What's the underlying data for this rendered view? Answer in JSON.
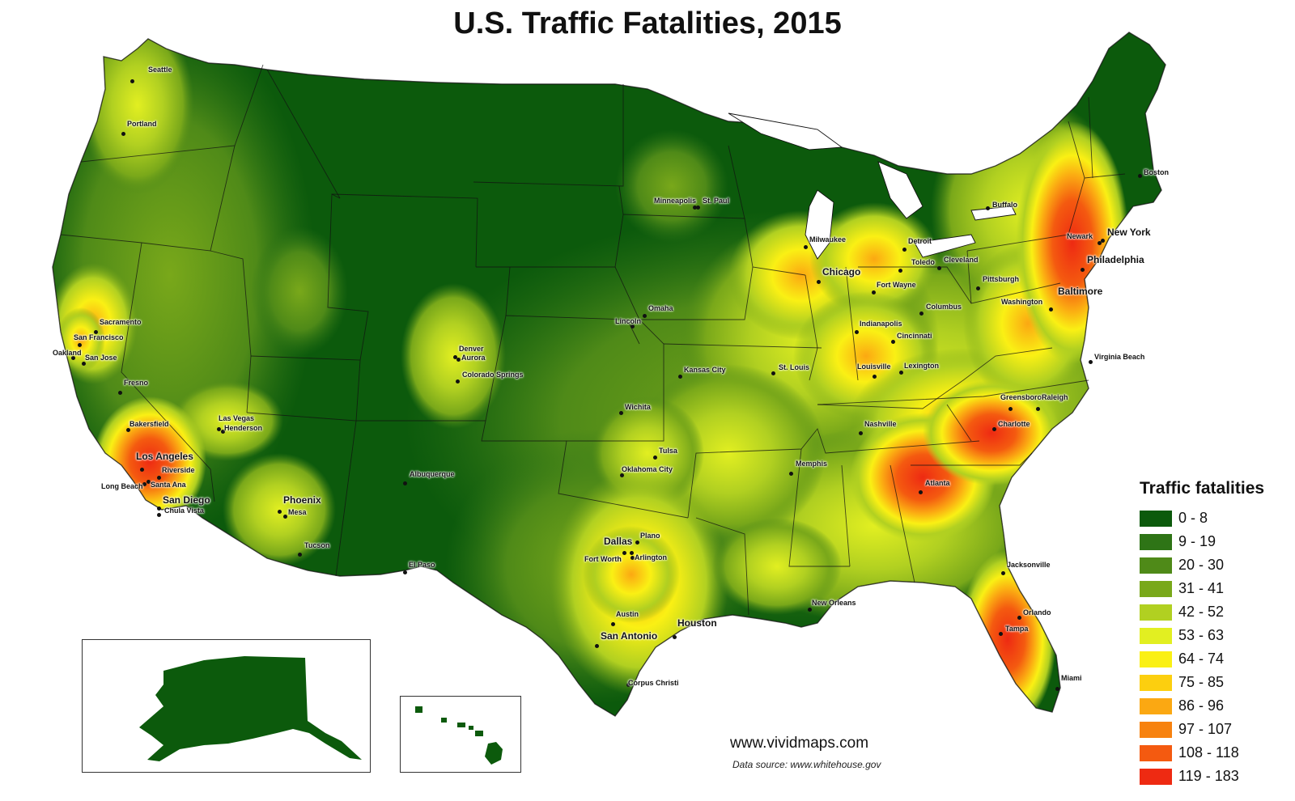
{
  "title": "U.S. Traffic Fatalities, 2015",
  "credit": "www.vividmaps.com",
  "source": "Data source: www.whitehouse.gov",
  "legend": {
    "title": "Traffic fatalities",
    "items": [
      {
        "label": "0 - 8",
        "color": "#0c5a0c"
      },
      {
        "label": "9 - 19",
        "color": "#2e7416"
      },
      {
        "label": "20 - 30",
        "color": "#4f8a18"
      },
      {
        "label": "31 - 41",
        "color": "#79a81a"
      },
      {
        "label": "42 - 52",
        "color": "#b1d021"
      },
      {
        "label": "53 - 63",
        "color": "#e2ef21"
      },
      {
        "label": "64 - 74",
        "color": "#faf014"
      },
      {
        "label": "75 - 85",
        "color": "#fccf0f"
      },
      {
        "label": "86 - 96",
        "color": "#fba812"
      },
      {
        "label": "97 - 107",
        "color": "#f7820f"
      },
      {
        "label": "108 - 118",
        "color": "#f45a10"
      },
      {
        "label": "119 - 183",
        "color": "#ee2a12"
      }
    ]
  },
  "cities": [
    {
      "name": "Seattle",
      "major": false
    },
    {
      "name": "Portland",
      "major": false
    },
    {
      "name": "Sacramento",
      "major": false
    },
    {
      "name": "San Francisco",
      "major": false
    },
    {
      "name": "Oakland",
      "major": false
    },
    {
      "name": "San Jose",
      "major": false
    },
    {
      "name": "Fresno",
      "major": false
    },
    {
      "name": "Bakersfield",
      "major": false
    },
    {
      "name": "Los Angeles",
      "major": true
    },
    {
      "name": "Riverside",
      "major": false
    },
    {
      "name": "Long Beach",
      "major": false
    },
    {
      "name": "Santa Ana",
      "major": false
    },
    {
      "name": "San Diego",
      "major": true
    },
    {
      "name": "Chula Vista",
      "major": false
    },
    {
      "name": "Las Vegas",
      "major": false
    },
    {
      "name": "Henderson",
      "major": false
    },
    {
      "name": "Phoenix",
      "major": true
    },
    {
      "name": "Mesa",
      "major": false
    },
    {
      "name": "Tucson",
      "major": false
    },
    {
      "name": "Albuquerque",
      "major": false
    },
    {
      "name": "El Paso",
      "major": false
    },
    {
      "name": "Denver",
      "major": false
    },
    {
      "name": "Aurora",
      "major": false
    },
    {
      "name": "Colorado Springs",
      "major": false
    },
    {
      "name": "Minneapolis",
      "major": false
    },
    {
      "name": "St. Paul",
      "major": false
    },
    {
      "name": "Omaha",
      "major": false
    },
    {
      "name": "Lincoln",
      "major": false
    },
    {
      "name": "Kansas City",
      "major": false
    },
    {
      "name": "Wichita",
      "major": false
    },
    {
      "name": "Tulsa",
      "major": false
    },
    {
      "name": "Oklahoma City",
      "major": false
    },
    {
      "name": "Dallas",
      "major": true
    },
    {
      "name": "Plano",
      "major": false
    },
    {
      "name": "Fort Worth",
      "major": false
    },
    {
      "name": "Arlington",
      "major": false
    },
    {
      "name": "Austin",
      "major": false
    },
    {
      "name": "San Antonio",
      "major": true
    },
    {
      "name": "Houston",
      "major": true
    },
    {
      "name": "Corpus Christi",
      "major": false
    },
    {
      "name": "Milwaukee",
      "major": false
    },
    {
      "name": "Chicago",
      "major": true
    },
    {
      "name": "Detroit",
      "major": false
    },
    {
      "name": "Toledo",
      "major": false
    },
    {
      "name": "Fort Wayne",
      "major": false
    },
    {
      "name": "Cleveland",
      "major": false
    },
    {
      "name": "Columbus",
      "major": false
    },
    {
      "name": "Indianapolis",
      "major": false
    },
    {
      "name": "Cincinnati",
      "major": false
    },
    {
      "name": "St. Louis",
      "major": false
    },
    {
      "name": "Louisville",
      "major": false
    },
    {
      "name": "Lexington",
      "major": false
    },
    {
      "name": "Nashville",
      "major": false
    },
    {
      "name": "Memphis",
      "major": false
    },
    {
      "name": "New Orleans",
      "major": false
    },
    {
      "name": "Atlanta",
      "major": false
    },
    {
      "name": "Charlotte",
      "major": false
    },
    {
      "name": "Greensboro",
      "major": false
    },
    {
      "name": "Raleigh",
      "major": false
    },
    {
      "name": "Virginia Beach",
      "major": false
    },
    {
      "name": "Jacksonville",
      "major": false
    },
    {
      "name": "Orlando",
      "major": false
    },
    {
      "name": "Tampa",
      "major": false
    },
    {
      "name": "Miami",
      "major": false
    },
    {
      "name": "Pittsburgh",
      "major": false
    },
    {
      "name": "Buffalo",
      "major": false
    },
    {
      "name": "Washington",
      "major": false
    },
    {
      "name": "Baltimore",
      "major": true
    },
    {
      "name": "Philadelphia",
      "major": true
    },
    {
      "name": "Newark",
      "major": false
    },
    {
      "name": "New York",
      "major": true
    },
    {
      "name": "Boston",
      "major": false
    }
  ]
}
